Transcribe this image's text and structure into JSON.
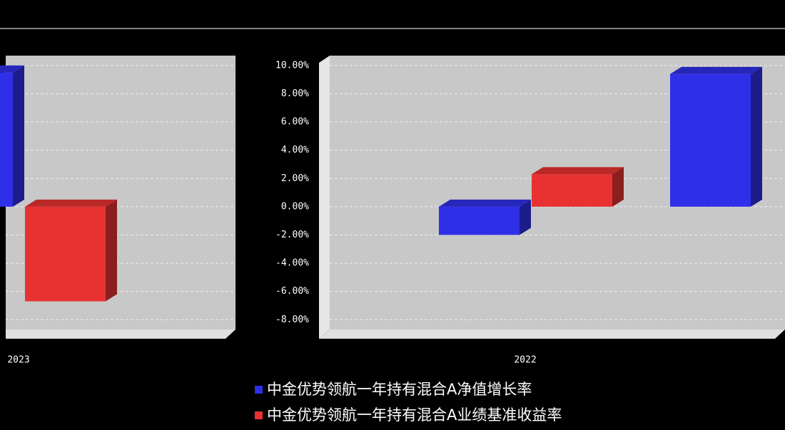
{
  "chart_data": [
    {
      "type": "bar3d",
      "categories": [
        "2023"
      ],
      "series": [
        {
          "color": "#2f2fe8",
          "values": [
            9.5
          ]
        },
        {
          "color": "#e83232",
          "values": [
            -6.7
          ]
        }
      ],
      "ylim": [
        -9.35,
        10.7
      ],
      "grid": true
    },
    {
      "type": "bar3d",
      "categories": [
        "2022",
        null
      ],
      "series": [
        {
          "name": "中金优势领航一年持有混合A净值增长率",
          "color": "#2f2fe8",
          "values": [
            -2.0,
            9.4
          ]
        },
        {
          "name": "中金优势领航一年持有混合A业绩基准收益率",
          "color": "#e83232",
          "values": [
            2.3,
            null
          ]
        }
      ],
      "ylim": [
        -9.35,
        10.7
      ],
      "yticks": [
        {
          "value": 10,
          "label": "10.00%"
        },
        {
          "value": 8,
          "label": "8.00%"
        },
        {
          "value": 6,
          "label": "6.00%"
        },
        {
          "value": 4,
          "label": "4.00%"
        },
        {
          "value": 2,
          "label": "2.00%"
        },
        {
          "value": 0,
          "label": "0.00%"
        },
        {
          "value": -2,
          "label": "-2.00%"
        },
        {
          "value": -4,
          "label": "-4.00%"
        },
        {
          "value": -6,
          "label": "-6.00%"
        },
        {
          "value": -8,
          "label": "-8.00%"
        }
      ],
      "grid": true
    }
  ]
}
